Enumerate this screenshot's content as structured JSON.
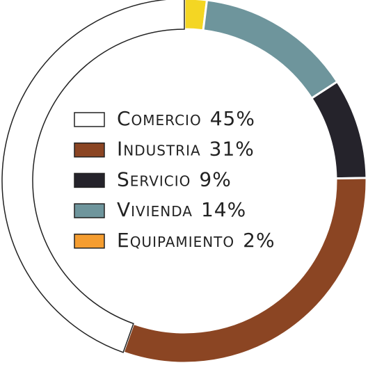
{
  "chart_data": {
    "type": "donut",
    "categories": [
      "Comercio",
      "Industria",
      "Servicio",
      "Vivienda",
      "Equipamiento"
    ],
    "values": [
      45,
      31,
      9,
      14,
      2
    ],
    "value_labels": [
      "45%",
      "31%",
      "9%",
      "14%",
      "2%"
    ],
    "colors": [
      "#ffffff",
      "#8b4523",
      "#25232b",
      "#6e959c",
      "#f4d623"
    ],
    "legend_colors": [
      "#ffffff",
      "#8b4523",
      "#25232b",
      "#6e959c",
      "#f59d30"
    ]
  }
}
